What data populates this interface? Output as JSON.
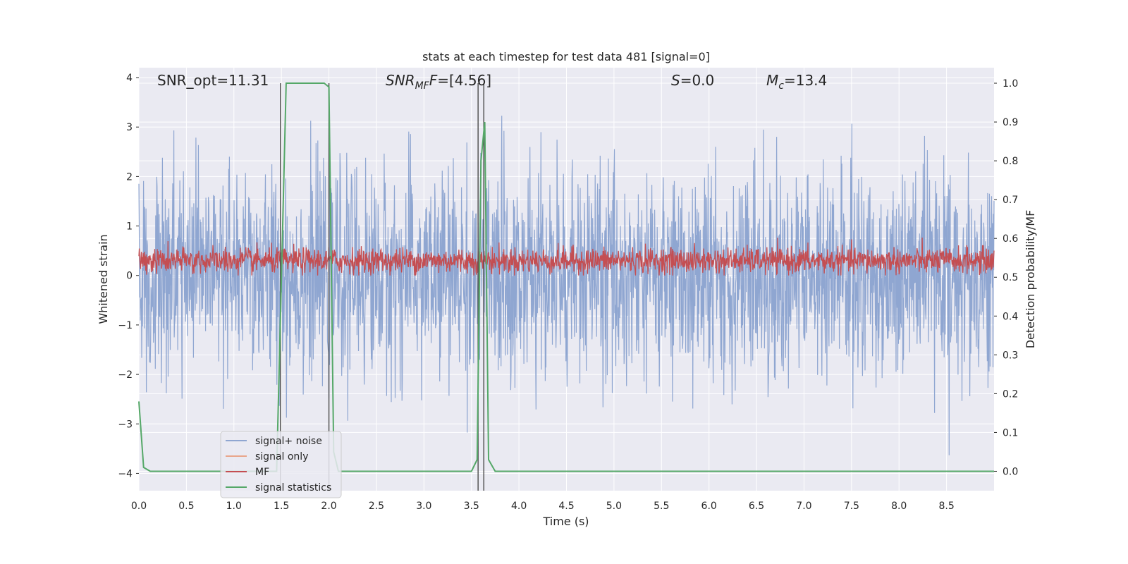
{
  "chart_data": {
    "type": "line",
    "title": "stats at each timestep for test data 481 [signal=0]",
    "xlabel": "Time (s)",
    "ylabel": "Whitened strain",
    "y2label": "Detection probability/MF",
    "xlim": [
      0.0,
      9.0
    ],
    "ylim": [
      -4.35,
      4.2
    ],
    "y2lim": [
      -0.05,
      1.04
    ],
    "x_ticks": [
      "0.0",
      "0.5",
      "1.0",
      "1.5",
      "2.0",
      "2.5",
      "3.0",
      "3.5",
      "4.0",
      "4.5",
      "5.0",
      "5.5",
      "6.0",
      "6.5",
      "7.0",
      "7.5",
      "8.0",
      "8.5"
    ],
    "y_ticks": [
      "4",
      "3",
      "2",
      "1",
      "0",
      "−1",
      "−2",
      "−3",
      "−4"
    ],
    "y2_ticks": [
      "1.0",
      "0.9",
      "0.8",
      "0.7",
      "0.6",
      "0.5",
      "0.4",
      "0.3",
      "0.2",
      "0.1",
      "0.0"
    ],
    "grid": true,
    "annotations": {
      "snr_opt": "SNR_opt=11.31",
      "snr_mf_label": "SNR",
      "snr_mf_sub": "MF",
      "snr_mf_value": "=[4.56]",
      "s_label": "S",
      "s_value": "=0.0",
      "mc_label": "M",
      "mc_sub": "c",
      "mc_value": "=13.4"
    },
    "legend": {
      "placement": "lower-left",
      "entries": [
        {
          "label": "signal+ noise",
          "color": "#8fa6d1"
        },
        {
          "label": "signal only",
          "color": "#e9a68b"
        },
        {
          "label": "MF",
          "color": "#c44e52"
        },
        {
          "label": "signal statistics",
          "color": "#55a868"
        }
      ]
    },
    "series": [
      {
        "name": "signal+ noise",
        "axis": "left",
        "style": "dense noise, approx range -3.8 to 3.4",
        "envelope": {
          "low": -3.8,
          "high": 3.4,
          "typical_low": -1.8,
          "typical_high": 1.8
        }
      },
      {
        "name": "MF",
        "axis": "left",
        "style": "dense noise band",
        "envelope": {
          "low": 0.0,
          "high": 0.85,
          "typical_low": 0.08,
          "typical_high": 0.55
        }
      },
      {
        "name": "signal statistics",
        "axis": "right",
        "x": [
          0.0,
          0.05,
          0.12,
          1.45,
          1.5,
          1.55,
          1.6,
          1.95,
          2.0,
          2.05,
          2.1,
          3.5,
          3.56,
          3.6,
          3.64,
          3.68,
          3.75,
          9.0
        ],
        "y": [
          0.18,
          0.01,
          0.0,
          0.0,
          0.5,
          1.0,
          1.0,
          1.0,
          0.99,
          0.05,
          0.0,
          0.0,
          0.03,
          0.8,
          0.9,
          0.03,
          0.0,
          0.0
        ]
      }
    ],
    "vertical_markers": {
      "color": "#555555",
      "x": [
        1.49,
        2.0,
        3.57,
        3.63
      ],
      "y2_top": 1.0
    },
    "colors": {
      "plot_bg": "#eaeaf2",
      "grid": "#ffffff",
      "noise": "#8fa6d1",
      "mf": "#c44e52",
      "stats": "#55a868",
      "signal_only": "#e9a68b"
    }
  }
}
